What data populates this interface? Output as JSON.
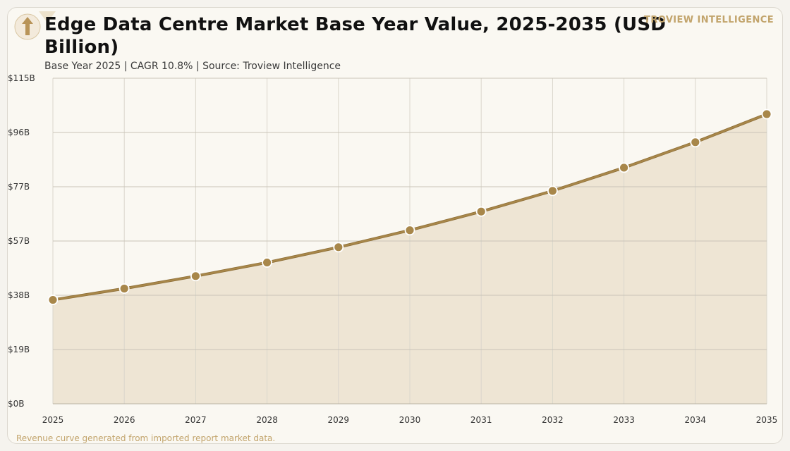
{
  "header": {
    "title": "Edge Data Centre Market Base Year Value, 2025-2035 (USD Billion)",
    "subtitle": "Base Year 2025 | CAGR 10.8% | Source: Troview Intelligence",
    "brand": "TROVIEW INTELLIGENCE"
  },
  "footer": {
    "note": "Revenue curve generated from imported report market data."
  },
  "colors": {
    "background": "#faf8f2",
    "line": "#a8874a",
    "marker": "#a8874a",
    "area_fill": "#ede4d2",
    "grid": "#c9c4b8",
    "brand": "#c2a46c"
  },
  "chart_data": {
    "type": "area",
    "title": "Edge Data Centre Market Base Year Value, 2025-2035 (USD Billion)",
    "xlabel": "",
    "ylabel": "",
    "x": [
      "2025",
      "2026",
      "2027",
      "2028",
      "2029",
      "2030",
      "2031",
      "2032",
      "2033",
      "2034",
      "2035"
    ],
    "series": [
      {
        "values": [
          36.7,
          40.7,
          45.1,
          49.9,
          55.3,
          61.3,
          67.9,
          75.2,
          83.4,
          92.4,
          102.3
        ]
      }
    ],
    "ylim": [
      0,
      115
    ],
    "y_ticks": [
      {
        "value": 0,
        "label": "$0B"
      },
      {
        "value": 19.17,
        "label": "$19B"
      },
      {
        "value": 38.33,
        "label": "$38B"
      },
      {
        "value": 57.5,
        "label": "$57B"
      },
      {
        "value": 76.67,
        "label": "$77B"
      },
      {
        "value": 95.83,
        "label": "$96B"
      },
      {
        "value": 115,
        "label": "$115B"
      }
    ],
    "grid": true,
    "markers": true,
    "legend": "none"
  }
}
